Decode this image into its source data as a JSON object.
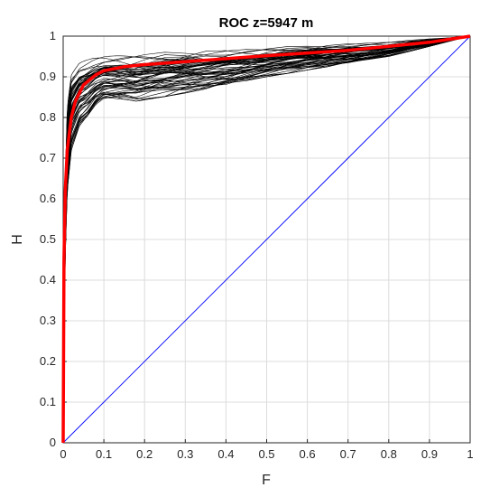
{
  "chart_data": {
    "type": "line",
    "title": "ROC z=5947 m",
    "xlabel": "F",
    "ylabel": "H",
    "xlim": [
      0,
      1
    ],
    "ylim": [
      0,
      1
    ],
    "xticks": [
      "0",
      "0.1",
      "0.2",
      "0.3",
      "0.4",
      "0.5",
      "0.6",
      "0.7",
      "0.8",
      "0.9",
      "1"
    ],
    "yticks": [
      "0",
      "0.1",
      "0.2",
      "0.3",
      "0.4",
      "0.5",
      "0.6",
      "0.7",
      "0.8",
      "0.9",
      "1"
    ],
    "grid": true,
    "colors": {
      "members": "#000000",
      "mean": "#ff0000",
      "diagonal": "#0000ff"
    },
    "series": [
      {
        "role": "mean",
        "x": [
          0,
          0.002,
          0.005,
          0.01,
          0.02,
          0.03,
          0.05,
          0.08,
          0.1,
          0.15,
          0.2,
          0.3,
          0.5,
          0.7,
          0.9,
          1.0
        ],
        "y": [
          0,
          0.45,
          0.62,
          0.72,
          0.8,
          0.84,
          0.88,
          0.905,
          0.915,
          0.925,
          0.93,
          0.937,
          0.952,
          0.965,
          0.985,
          1.0
        ]
      },
      {
        "role": "diagonal",
        "x": [
          0,
          1
        ],
        "y": [
          0,
          1
        ]
      },
      {
        "role": "member-upper-envelope",
        "x": [
          0,
          0.003,
          0.01,
          0.02,
          0.04,
          0.07,
          0.1,
          0.15,
          0.25,
          0.5,
          0.8,
          1.0
        ],
        "y": [
          0,
          0.6,
          0.86,
          0.93,
          0.95,
          0.958,
          0.962,
          0.965,
          0.97,
          0.978,
          0.99,
          1.0
        ]
      },
      {
        "role": "member-lower-envelope",
        "x": [
          0,
          0.005,
          0.01,
          0.02,
          0.04,
          0.06,
          0.08,
          0.1,
          0.15,
          0.18,
          0.3,
          0.5,
          0.8,
          1.0
        ],
        "y": [
          0,
          0.45,
          0.62,
          0.72,
          0.78,
          0.8,
          0.83,
          0.845,
          0.845,
          0.84,
          0.86,
          0.9,
          0.95,
          1.0
        ]
      }
    ],
    "member_count": 60
  }
}
